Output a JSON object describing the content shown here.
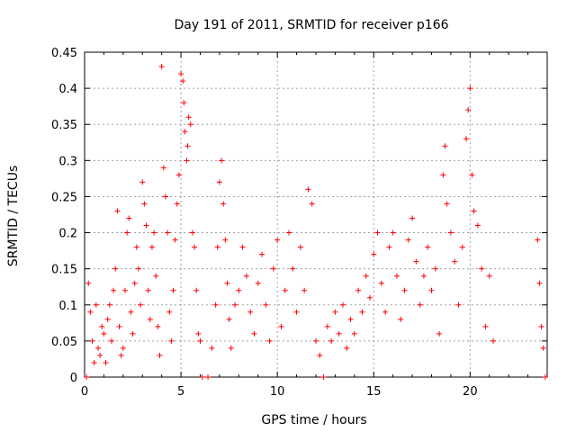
{
  "chart_data": {
    "type": "scatter",
    "title": "Day 191 of 2011, SRMTID for receiver p166",
    "xlabel": "GPS time / hours",
    "ylabel": "SRMTID / TECUs",
    "xlim": [
      0,
      24
    ],
    "ylim": [
      0,
      0.45
    ],
    "x_ticks": [
      0,
      5,
      10,
      15,
      20
    ],
    "x_tick_labels": [
      "0",
      "5",
      "10",
      "15",
      "20"
    ],
    "y_ticks": [
      0,
      0.05,
      0.1,
      0.15,
      0.2,
      0.25,
      0.3,
      0.35,
      0.4,
      0.45
    ],
    "y_tick_labels": [
      "0",
      "0.05",
      "0.1",
      "0.15",
      "0.2",
      "0.25",
      "0.3",
      "0.35",
      "0.4",
      "0.45"
    ],
    "grid": true,
    "marker": "+",
    "color": "#ff0000",
    "series": [
      {
        "points": [
          [
            0.1,
            0.0
          ],
          [
            0.2,
            0.13
          ],
          [
            0.3,
            0.09
          ],
          [
            0.4,
            0.05
          ],
          [
            0.5,
            0.02
          ],
          [
            0.6,
            0.1
          ],
          [
            0.7,
            0.04
          ],
          [
            0.8,
            0.03
          ],
          [
            0.9,
            0.07
          ],
          [
            1.0,
            0.06
          ],
          [
            1.1,
            0.02
          ],
          [
            1.2,
            0.08
          ],
          [
            1.3,
            0.1
          ],
          [
            1.4,
            0.05
          ],
          [
            1.5,
            0.12
          ],
          [
            1.6,
            0.15
          ],
          [
            1.7,
            0.23
          ],
          [
            1.8,
            0.07
          ],
          [
            1.9,
            0.03
          ],
          [
            2.0,
            0.04
          ],
          [
            2.1,
            0.12
          ],
          [
            2.2,
            0.2
          ],
          [
            2.3,
            0.22
          ],
          [
            2.4,
            0.09
          ],
          [
            2.5,
            0.06
          ],
          [
            2.6,
            0.13
          ],
          [
            2.7,
            0.18
          ],
          [
            2.8,
            0.15
          ],
          [
            2.9,
            0.1
          ],
          [
            3.0,
            0.27
          ],
          [
            3.1,
            0.24
          ],
          [
            3.2,
            0.21
          ],
          [
            3.3,
            0.12
          ],
          [
            3.4,
            0.08
          ],
          [
            3.5,
            0.18
          ],
          [
            3.6,
            0.2
          ],
          [
            3.7,
            0.14
          ],
          [
            3.8,
            0.07
          ],
          [
            3.9,
            0.03
          ],
          [
            4.0,
            0.43
          ],
          [
            4.1,
            0.29
          ],
          [
            4.2,
            0.25
          ],
          [
            4.3,
            0.2
          ],
          [
            4.4,
            0.09
          ],
          [
            4.5,
            0.05
          ],
          [
            4.6,
            0.12
          ],
          [
            4.7,
            0.19
          ],
          [
            4.8,
            0.24
          ],
          [
            4.9,
            0.28
          ],
          [
            5.0,
            0.42
          ],
          [
            5.1,
            0.41
          ],
          [
            5.15,
            0.38
          ],
          [
            5.2,
            0.34
          ],
          [
            5.3,
            0.3
          ],
          [
            5.35,
            0.32
          ],
          [
            5.4,
            0.36
          ],
          [
            5.5,
            0.35
          ],
          [
            5.6,
            0.2
          ],
          [
            5.7,
            0.18
          ],
          [
            5.8,
            0.12
          ],
          [
            5.9,
            0.06
          ],
          [
            6.0,
            0.05
          ],
          [
            6.1,
            0.0
          ],
          [
            6.4,
            0.0
          ],
          [
            6.6,
            0.04
          ],
          [
            6.8,
            0.1
          ],
          [
            6.9,
            0.18
          ],
          [
            7.0,
            0.27
          ],
          [
            7.1,
            0.3
          ],
          [
            7.2,
            0.24
          ],
          [
            7.3,
            0.19
          ],
          [
            7.4,
            0.13
          ],
          [
            7.5,
            0.08
          ],
          [
            7.6,
            0.04
          ],
          [
            7.8,
            0.1
          ],
          [
            8.0,
            0.12
          ],
          [
            8.2,
            0.18
          ],
          [
            8.4,
            0.14
          ],
          [
            8.6,
            0.09
          ],
          [
            8.8,
            0.06
          ],
          [
            9.0,
            0.13
          ],
          [
            9.2,
            0.17
          ],
          [
            9.4,
            0.1
          ],
          [
            9.6,
            0.05
          ],
          [
            9.8,
            0.15
          ],
          [
            10.0,
            0.19
          ],
          [
            10.2,
            0.07
          ],
          [
            10.4,
            0.12
          ],
          [
            10.6,
            0.2
          ],
          [
            10.8,
            0.15
          ],
          [
            11.0,
            0.09
          ],
          [
            11.2,
            0.18
          ],
          [
            11.4,
            0.12
          ],
          [
            11.6,
            0.26
          ],
          [
            11.8,
            0.24
          ],
          [
            12.0,
            0.05
          ],
          [
            12.2,
            0.03
          ],
          [
            12.4,
            0.0
          ],
          [
            12.6,
            0.07
          ],
          [
            12.8,
            0.05
          ],
          [
            13.0,
            0.09
          ],
          [
            13.2,
            0.06
          ],
          [
            13.4,
            0.1
          ],
          [
            13.6,
            0.04
          ],
          [
            13.8,
            0.08
          ],
          [
            14.0,
            0.06
          ],
          [
            14.2,
            0.12
          ],
          [
            14.4,
            0.09
          ],
          [
            14.6,
            0.14
          ],
          [
            14.8,
            0.11
          ],
          [
            15.0,
            0.17
          ],
          [
            15.2,
            0.2
          ],
          [
            15.4,
            0.13
          ],
          [
            15.6,
            0.09
          ],
          [
            15.8,
            0.18
          ],
          [
            16.0,
            0.2
          ],
          [
            16.2,
            0.14
          ],
          [
            16.4,
            0.08
          ],
          [
            16.6,
            0.12
          ],
          [
            16.8,
            0.19
          ],
          [
            17.0,
            0.22
          ],
          [
            17.2,
            0.16
          ],
          [
            17.4,
            0.1
          ],
          [
            17.6,
            0.14
          ],
          [
            17.8,
            0.18
          ],
          [
            18.0,
            0.12
          ],
          [
            18.2,
            0.15
          ],
          [
            18.4,
            0.06
          ],
          [
            18.6,
            0.28
          ],
          [
            18.7,
            0.32
          ],
          [
            18.8,
            0.24
          ],
          [
            19.0,
            0.2
          ],
          [
            19.2,
            0.16
          ],
          [
            19.4,
            0.1
          ],
          [
            19.6,
            0.18
          ],
          [
            19.8,
            0.33
          ],
          [
            19.9,
            0.37
          ],
          [
            20.0,
            0.4
          ],
          [
            20.1,
            0.28
          ],
          [
            20.2,
            0.23
          ],
          [
            20.4,
            0.21
          ],
          [
            20.6,
            0.15
          ],
          [
            20.8,
            0.07
          ],
          [
            21.0,
            0.14
          ],
          [
            21.2,
            0.05
          ],
          [
            23.5,
            0.19
          ],
          [
            23.6,
            0.13
          ],
          [
            23.7,
            0.07
          ],
          [
            23.8,
            0.04
          ],
          [
            23.9,
            0.0
          ]
        ]
      }
    ]
  }
}
